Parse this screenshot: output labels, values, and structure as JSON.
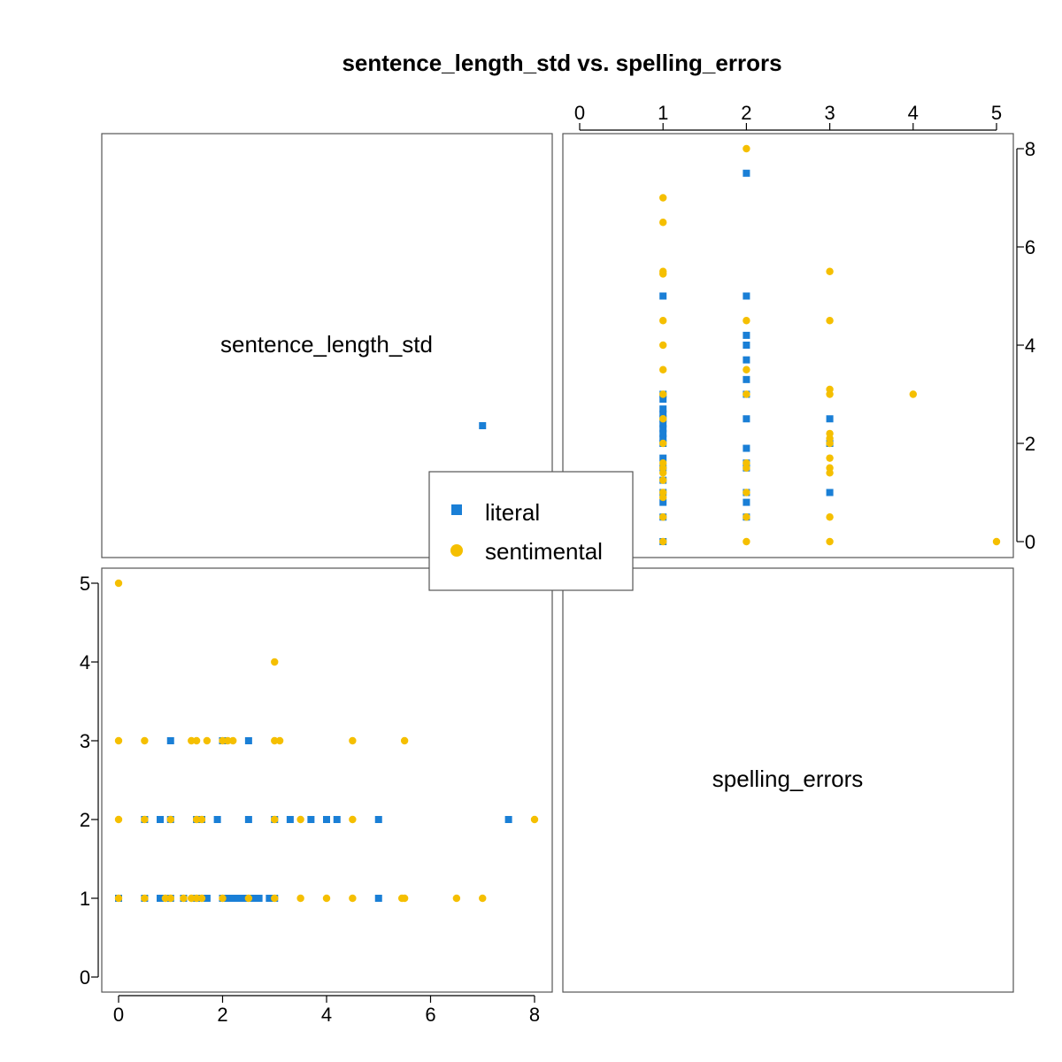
{
  "chart_data": {
    "type": "scatter",
    "title": "sentence_length_std vs. spelling_errors",
    "variables": [
      "sentence_length_std",
      "spelling_errors"
    ],
    "ranges": {
      "sentence_length_std": [
        0,
        8
      ],
      "spelling_errors": [
        0,
        5
      ]
    },
    "ticks": {
      "sentence_length_std": [
        "0",
        "2",
        "4",
        "6",
        "8"
      ],
      "spelling_errors": [
        "0",
        "1",
        "2",
        "3",
        "4",
        "5"
      ]
    },
    "grid": false,
    "legend": {
      "placement": "center"
    },
    "series": [
      {
        "name": "literal",
        "color": "#1a7fd6",
        "marker": "square",
        "points": [
          {
            "x": 0.0,
            "y": 1
          },
          {
            "x": 0.5,
            "y": 1
          },
          {
            "x": 0.8,
            "y": 1
          },
          {
            "x": 1.0,
            "y": 1
          },
          {
            "x": 1.25,
            "y": 1
          },
          {
            "x": 1.5,
            "y": 1
          },
          {
            "x": 1.7,
            "y": 1
          },
          {
            "x": 2.0,
            "y": 1
          },
          {
            "x": 2.1,
            "y": 1
          },
          {
            "x": 2.2,
            "y": 1
          },
          {
            "x": 2.3,
            "y": 1
          },
          {
            "x": 2.4,
            "y": 1
          },
          {
            "x": 2.5,
            "y": 1
          },
          {
            "x": 2.6,
            "y": 1
          },
          {
            "x": 2.7,
            "y": 1
          },
          {
            "x": 2.9,
            "y": 1
          },
          {
            "x": 3.0,
            "y": 1
          },
          {
            "x": 5.0,
            "y": 1
          },
          {
            "x": 7.0,
            "y": 7
          },
          {
            "x": 0.5,
            "y": 2
          },
          {
            "x": 0.8,
            "y": 2
          },
          {
            "x": 1.0,
            "y": 2
          },
          {
            "x": 1.5,
            "y": 2
          },
          {
            "x": 1.6,
            "y": 2
          },
          {
            "x": 1.9,
            "y": 2
          },
          {
            "x": 2.5,
            "y": 2
          },
          {
            "x": 3.0,
            "y": 2
          },
          {
            "x": 3.3,
            "y": 2
          },
          {
            "x": 3.7,
            "y": 2
          },
          {
            "x": 4.0,
            "y": 2
          },
          {
            "x": 4.2,
            "y": 2
          },
          {
            "x": 5.0,
            "y": 2
          },
          {
            "x": 7.5,
            "y": 2
          },
          {
            "x": 1.0,
            "y": 3
          },
          {
            "x": 2.5,
            "y": 3
          },
          {
            "x": 2.0,
            "y": 3
          }
        ]
      },
      {
        "name": "sentimental",
        "color": "#f5bf00",
        "marker": "circle",
        "points": [
          {
            "x": 0.0,
            "y": 5
          },
          {
            "x": 3.0,
            "y": 4
          },
          {
            "x": 0.0,
            "y": 3
          },
          {
            "x": 0.5,
            "y": 3
          },
          {
            "x": 1.4,
            "y": 3
          },
          {
            "x": 1.5,
            "y": 3
          },
          {
            "x": 1.7,
            "y": 3
          },
          {
            "x": 2.0,
            "y": 3
          },
          {
            "x": 2.1,
            "y": 3
          },
          {
            "x": 2.2,
            "y": 3
          },
          {
            "x": 3.0,
            "y": 3
          },
          {
            "x": 3.1,
            "y": 3
          },
          {
            "x": 4.5,
            "y": 3
          },
          {
            "x": 5.5,
            "y": 3
          },
          {
            "x": 0.0,
            "y": 2
          },
          {
            "x": 0.5,
            "y": 2
          },
          {
            "x": 1.0,
            "y": 2
          },
          {
            "x": 1.5,
            "y": 2
          },
          {
            "x": 1.6,
            "y": 2
          },
          {
            "x": 3.0,
            "y": 2
          },
          {
            "x": 3.5,
            "y": 2
          },
          {
            "x": 4.5,
            "y": 2
          },
          {
            "x": 8.0,
            "y": 2
          },
          {
            "x": 0.0,
            "y": 1
          },
          {
            "x": 0.5,
            "y": 1
          },
          {
            "x": 0.9,
            "y": 1
          },
          {
            "x": 1.0,
            "y": 1
          },
          {
            "x": 1.25,
            "y": 1
          },
          {
            "x": 1.4,
            "y": 1
          },
          {
            "x": 1.5,
            "y": 1
          },
          {
            "x": 1.6,
            "y": 1
          },
          {
            "x": 2.0,
            "y": 1
          },
          {
            "x": 2.5,
            "y": 1
          },
          {
            "x": 3.0,
            "y": 1
          },
          {
            "x": 3.5,
            "y": 1
          },
          {
            "x": 4.0,
            "y": 1
          },
          {
            "x": 4.5,
            "y": 1
          },
          {
            "x": 5.45,
            "y": 1
          },
          {
            "x": 5.5,
            "y": 1
          },
          {
            "x": 6.5,
            "y": 1
          },
          {
            "x": 7.0,
            "y": 1
          }
        ]
      }
    ]
  }
}
